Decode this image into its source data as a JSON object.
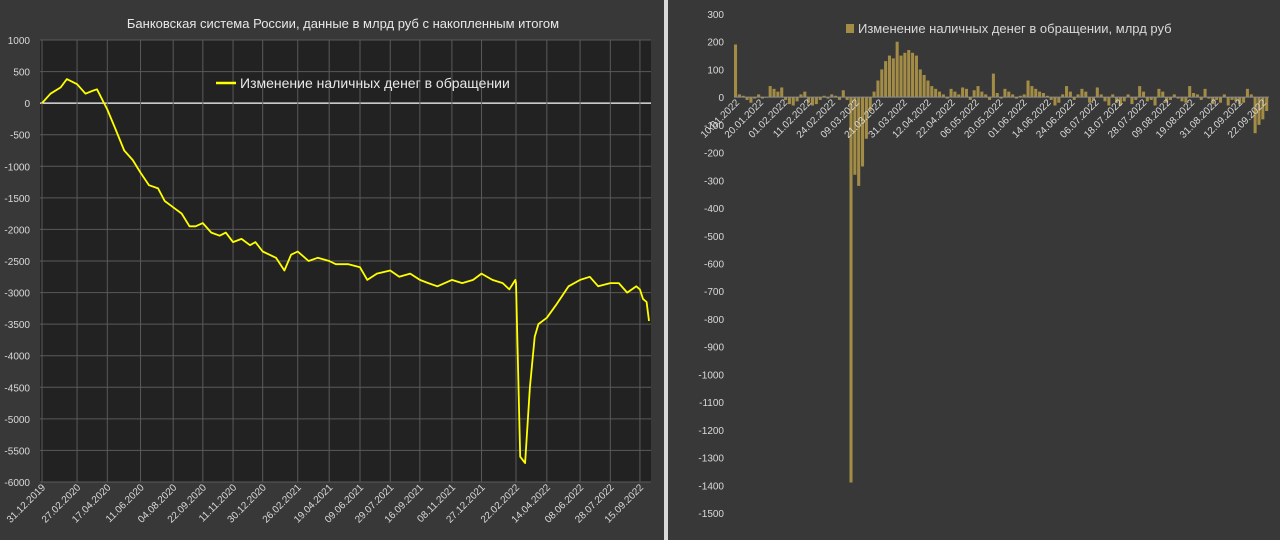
{
  "chart_data": [
    {
      "type": "line",
      "title": "Банковская система России, данные в млрд руб с накопленным итогом",
      "xlabel": "",
      "ylabel": "",
      "ylim": [
        -6000,
        1000
      ],
      "yticks": [
        1000,
        500,
        0,
        -500,
        -1000,
        -1500,
        -2000,
        -2500,
        -3000,
        -3500,
        -4000,
        -4500,
        -5000,
        -5500,
        -6000
      ],
      "xticks": [
        "31.12.2019",
        "27.02.2020",
        "17.04.2020",
        "11.06.2020",
        "04.08.2020",
        "22.09.2020",
        "11.11.2020",
        "30.12.2020",
        "26.02.2021",
        "19.04.2021",
        "09.06.2021",
        "29.07.2021",
        "16.09.2021",
        "08.11.2021",
        "27.12.2021",
        "22.02.2022",
        "14.04.2022",
        "08.06.2022",
        "28.07.2022",
        "15.09.2022"
      ],
      "background": "#222222",
      "grid": true,
      "legend_position": "top",
      "series": [
        {
          "name": "Изменение наличных денег в обращении",
          "color": "#ffff00",
          "x": [
            "31.12.2019",
            "14.01.2020",
            "31.01.2020",
            "10.02.2020",
            "27.02.2020",
            "12.03.2020",
            "25.03.2020",
            "31.03.2020",
            "17.04.2020",
            "30.04.2020",
            "15.05.2020",
            "29.05.2020",
            "11.06.2020",
            "25.06.2020",
            "10.07.2020",
            "21.07.2020",
            "04.08.2020",
            "18.08.2020",
            "31.08.2020",
            "10.09.2020",
            "22.09.2020",
            "06.10.2020",
            "20.10.2020",
            "30.10.2020",
            "11.11.2020",
            "25.11.2020",
            "09.12.2020",
            "18.12.2020",
            "30.12.2020",
            "21.01.2021",
            "04.02.2021",
            "15.02.2021",
            "26.02.2021",
            "16.03.2021",
            "31.03.2021",
            "19.04.2021",
            "30.04.2021",
            "21.05.2021",
            "09.06.2021",
            "21.06.2021",
            "07.07.2021",
            "29.07.2021",
            "13.08.2021",
            "31.08.2021",
            "16.09.2021",
            "30.09.2021",
            "15.10.2021",
            "08.11.2021",
            "25.11.2021",
            "13.12.2021",
            "27.12.2021",
            "14.01.2022",
            "31.01.2022",
            "11.02.2022",
            "21.02.2022",
            "22.02.2022",
            "01.03.2022",
            "09.03.2022",
            "17.03.2022",
            "25.03.2022",
            "31.03.2022",
            "14.04.2022",
            "29.04.2022",
            "20.05.2022",
            "08.06.2022",
            "24.06.2022",
            "08.07.2022",
            "28.07.2022",
            "11.08.2022",
            "25.08.2022",
            "09.09.2022",
            "15.09.2022",
            "20.09.2022",
            "26.09.2022",
            "30.09.2022"
          ],
          "values": [
            0,
            150,
            250,
            380,
            300,
            150,
            200,
            220,
            -100,
            -400,
            -750,
            -900,
            -1100,
            -1300,
            -1350,
            -1550,
            -1650,
            -1750,
            -1950,
            -1950,
            -1900,
            -2050,
            -2100,
            -2050,
            -2200,
            -2150,
            -2250,
            -2200,
            -2350,
            -2450,
            -2650,
            -2400,
            -2350,
            -2500,
            -2450,
            -2500,
            -2550,
            -2550,
            -2600,
            -2800,
            -2700,
            -2650,
            -2750,
            -2700,
            -2800,
            -2850,
            -2900,
            -2800,
            -2850,
            -2800,
            -2700,
            -2800,
            -2850,
            -2950,
            -2800,
            -2850,
            -5600,
            -5700,
            -4500,
            -3700,
            -3500,
            -3400,
            -3200,
            -2900,
            -2800,
            -2750,
            -2900,
            -2850,
            -2850,
            -3000,
            -2900,
            -2950,
            -3100,
            -3150,
            -3450
          ]
        }
      ]
    },
    {
      "type": "bar",
      "title": "",
      "xlabel": "",
      "ylabel": "",
      "ylim": [
        -1500,
        300
      ],
      "yticks": [
        300,
        200,
        100,
        0,
        -100,
        -200,
        -300,
        -400,
        -500,
        -600,
        -700,
        -800,
        -900,
        -1000,
        -1100,
        -1200,
        -1300,
        -1400,
        -1500
      ],
      "xticks": [
        "10.01.2022",
        "20.01.2022",
        "01.02.2022",
        "11.02.2022",
        "24.02.2022",
        "09.03.2022",
        "21.03.2022",
        "31.03.2022",
        "12.04.2022",
        "22.04.2022",
        "06.05.2022",
        "20.05.2022",
        "01.06.2022",
        "14.06.2022",
        "24.06.2022",
        "06.07.2022",
        "18.07.2022",
        "28.07.2022",
        "09.08.2022",
        "19.08.2022",
        "31.08.2022",
        "12.09.2022",
        "22.09.2022"
      ],
      "grid": false,
      "legend_position": "top",
      "series": [
        {
          "name": "Изменение наличных денег в обращении, млрд руб",
          "color": "#a38c46",
          "values": [
            190,
            10,
            5,
            -10,
            -20,
            -5,
            10,
            -5,
            0,
            40,
            30,
            20,
            35,
            -10,
            -25,
            -30,
            -15,
            10,
            20,
            -20,
            -30,
            -25,
            -10,
            5,
            -5,
            10,
            5,
            -10,
            25,
            -10,
            -1390,
            -280,
            -320,
            -250,
            -150,
            -50,
            20,
            60,
            100,
            130,
            150,
            140,
            200,
            150,
            160,
            170,
            160,
            150,
            100,
            80,
            60,
            40,
            30,
            20,
            10,
            -5,
            30,
            20,
            10,
            35,
            30,
            -10,
            25,
            40,
            20,
            10,
            -10,
            85,
            15,
            -5,
            30,
            20,
            10,
            -5,
            5,
            10,
            60,
            40,
            30,
            20,
            15,
            5,
            -10,
            -30,
            -20,
            10,
            40,
            20,
            -10,
            10,
            30,
            20,
            -20,
            -10,
            35,
            10,
            -15,
            -30,
            10,
            -20,
            -30,
            -15,
            10,
            -25,
            -10,
            40,
            20,
            -15,
            -10,
            -30,
            30,
            20,
            -20,
            -10,
            10,
            -5,
            -15,
            -20,
            40,
            15,
            10,
            -10,
            30,
            -5,
            -25,
            -10,
            -20,
            10,
            -30,
            -10,
            -15,
            -25,
            -20,
            30,
            10,
            -130,
            -100,
            -80,
            -50
          ]
        }
      ]
    }
  ]
}
